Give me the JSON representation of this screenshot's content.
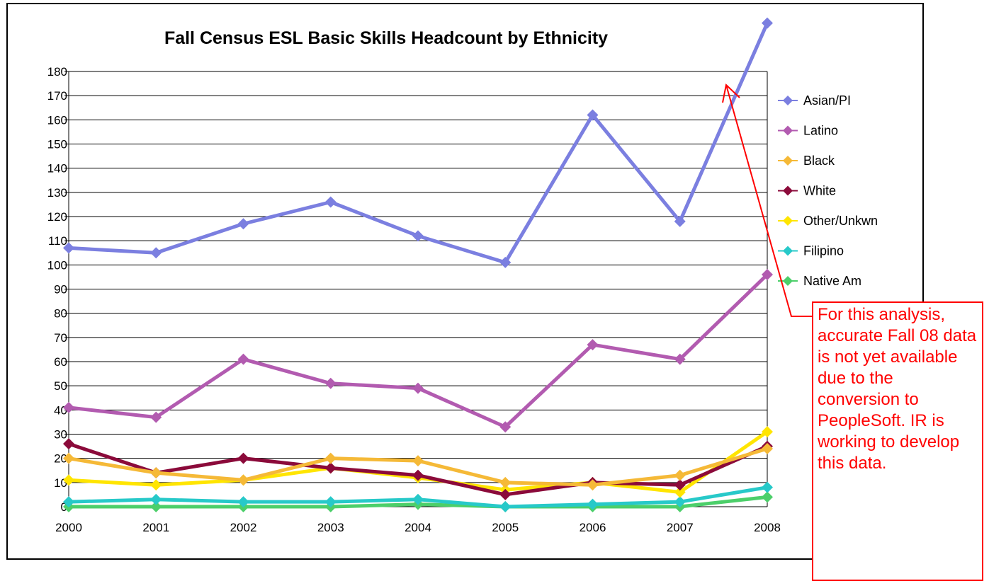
{
  "chart_data": {
    "type": "line",
    "title": "Fall Census ESL Basic Skills Headcount by Ethnicity",
    "xlabel": "",
    "ylabel": "",
    "x": [
      "2000",
      "2001",
      "2002",
      "2003",
      "2004",
      "2005",
      "2006",
      "2007",
      "2008"
    ],
    "ylim": [
      0,
      180
    ],
    "yticks": [
      0,
      10,
      20,
      30,
      40,
      50,
      60,
      70,
      80,
      90,
      100,
      110,
      120,
      130,
      140,
      150,
      160,
      170,
      180
    ],
    "grid": "horizontal",
    "legend_position": "right",
    "series": [
      {
        "name": "Asian/PI",
        "color": "#7b7fe0",
        "values": [
          107,
          105,
          117,
          126,
          112,
          101,
          162,
          118,
          200
        ]
      },
      {
        "name": "Latino",
        "color": "#b25bb0",
        "values": [
          41,
          37,
          61,
          51,
          49,
          33,
          67,
          61,
          96
        ]
      },
      {
        "name": "Black",
        "color": "#f5b937",
        "values": [
          20,
          14,
          11,
          20,
          19,
          10,
          9,
          13,
          24
        ]
      },
      {
        "name": "White",
        "color": "#8b0a3a",
        "values": [
          26,
          14,
          20,
          16,
          13,
          5,
          10,
          9,
          25
        ]
      },
      {
        "name": "Other/Unkwn",
        "color": "#ffe500",
        "values": [
          11,
          9,
          11,
          16,
          12,
          7,
          10,
          6,
          31
        ]
      },
      {
        "name": "Filipino",
        "color": "#27c9c9",
        "values": [
          2,
          3,
          2,
          2,
          3,
          0,
          1,
          2,
          8
        ]
      },
      {
        "name": "Native Am",
        "color": "#4ccf6a",
        "values": [
          0,
          0,
          0,
          0,
          1,
          0,
          0,
          0,
          4
        ]
      }
    ]
  },
  "annotation": {
    "text": "For this analysis, accurate Fall 08 data is not yet available due to the conversion to PeopleSoft. IR is working to develop this data.",
    "color": "#ff0000"
  }
}
